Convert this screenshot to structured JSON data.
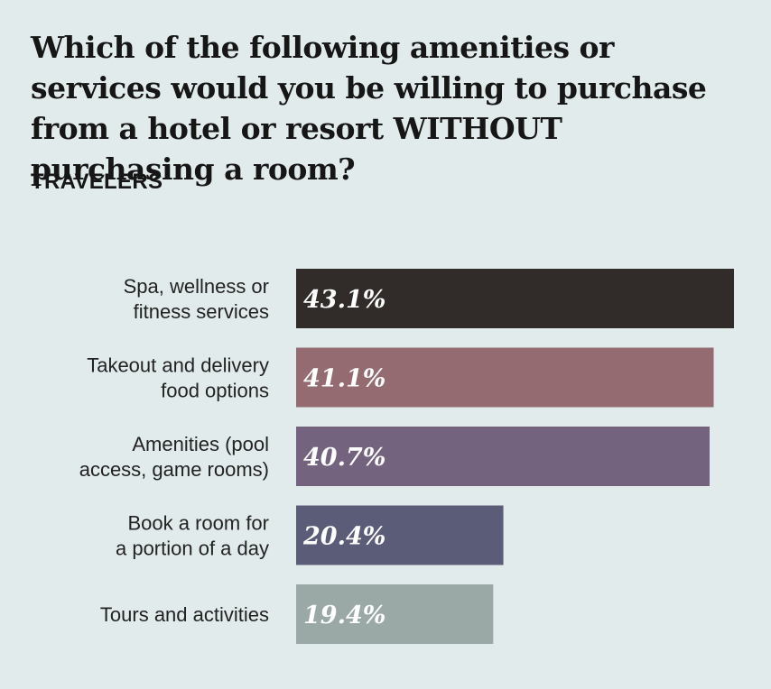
{
  "chart_data": {
    "type": "bar",
    "orientation": "horizontal",
    "title": "Which of the following amenities or services would you be willing to purchase from a hotel or resort WITHOUT purchasing a room?",
    "subtitle": "TRAVELERS",
    "categories": [
      [
        "Spa, wellness or",
        "fitness services"
      ],
      [
        "Takeout and delivery",
        "food options"
      ],
      [
        "Amenities (pool",
        "access, game rooms)"
      ],
      [
        "Book a room for",
        "a portion of a day"
      ],
      [
        "Tours and activities"
      ]
    ],
    "values": [
      43.1,
      41.1,
      40.7,
      20.4,
      19.4
    ],
    "value_labels": [
      "43.1%",
      "41.1%",
      "40.7%",
      "20.4%",
      "19.4%"
    ],
    "colors": [
      "#312c2a",
      "#936b70",
      "#73637f",
      "#5b5c77",
      "#9aa9a6"
    ],
    "xlim": [
      0,
      43.1
    ],
    "grid": false,
    "legend": "none"
  }
}
